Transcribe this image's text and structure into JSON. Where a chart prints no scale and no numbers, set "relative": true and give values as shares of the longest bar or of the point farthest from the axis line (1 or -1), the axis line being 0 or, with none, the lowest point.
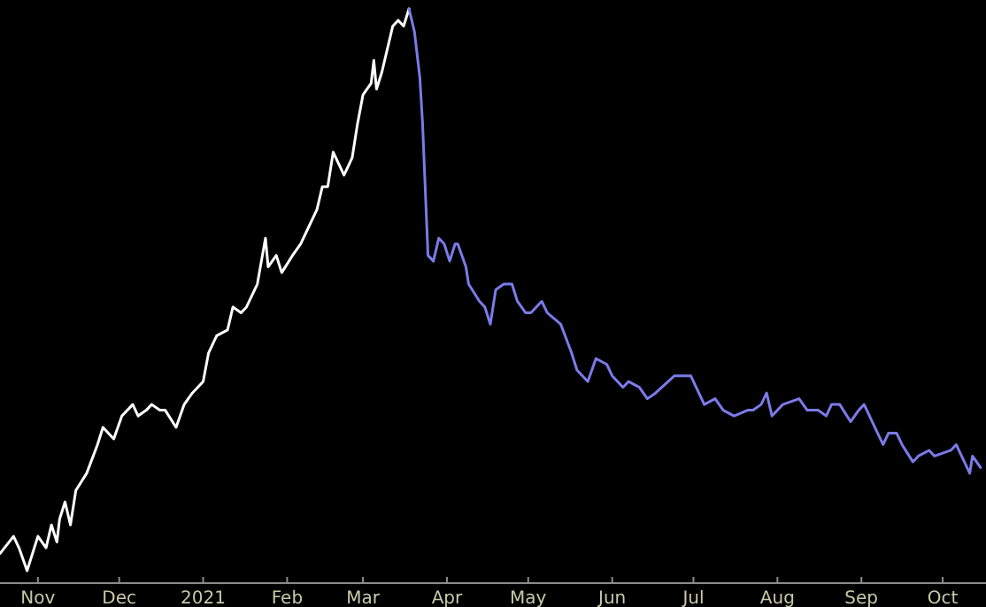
{
  "chart_data": {
    "type": "line",
    "relative": true,
    "marker": "none",
    "line_style": "solid",
    "xlim": [
      "2020-10-18",
      "2021-10-17"
    ],
    "xticks": [
      {
        "value": "2020-11-01",
        "label": "Nov"
      },
      {
        "value": "2020-12-01",
        "label": "Dec"
      },
      {
        "value": "2021-01-01",
        "label": "2021"
      },
      {
        "value": "2021-02-01",
        "label": "Feb"
      },
      {
        "value": "2021-03-01",
        "label": "Mar"
      },
      {
        "value": "2021-04-01",
        "label": "Apr"
      },
      {
        "value": "2021-05-01",
        "label": "May"
      },
      {
        "value": "2021-06-01",
        "label": "Jun"
      },
      {
        "value": "2021-07-01",
        "label": "Jul"
      },
      {
        "value": "2021-08-01",
        "label": "Aug"
      },
      {
        "value": "2021-09-01",
        "label": "Sep"
      },
      {
        "value": "2021-10-01",
        "label": "Oct"
      }
    ],
    "series": [
      {
        "color": "#ffffff",
        "x": [
          "2020-10-18",
          "2020-10-23",
          "2020-10-25",
          "2020-10-28",
          "2020-11-01",
          "2020-11-04",
          "2020-11-06",
          "2020-11-08",
          "2020-11-09",
          "2020-11-11",
          "2020-11-13",
          "2020-11-15",
          "2020-11-19",
          "2020-11-23",
          "2020-11-25",
          "2020-11-29",
          "2020-12-02",
          "2020-12-04",
          "2020-12-06",
          "2020-12-08",
          "2020-12-11",
          "2020-12-13",
          "2020-12-16",
          "2020-12-18",
          "2020-12-22",
          "2020-12-25",
          "2020-12-28",
          "2021-01-01",
          "2021-01-03",
          "2021-01-06",
          "2021-01-10",
          "2021-01-12",
          "2021-01-15",
          "2021-01-17",
          "2021-01-21",
          "2021-01-24",
          "2021-01-25",
          "2021-01-28",
          "2021-01-30",
          "2021-02-03",
          "2021-02-06",
          "2021-02-09",
          "2021-02-12",
          "2021-02-14",
          "2021-02-16",
          "2021-02-18",
          "2021-02-20",
          "2021-02-22",
          "2021-02-25",
          "2021-02-27",
          "2021-03-01",
          "2021-03-04",
          "2021-03-05",
          "2021-03-06",
          "2021-03-08",
          "2021-03-12",
          "2021-03-14",
          "2021-03-16",
          "2021-03-18"
        ],
        "values": [
          0.05,
          0.08,
          0.06,
          0.02,
          0.08,
          0.06,
          0.1,
          0.07,
          0.11,
          0.14,
          0.1,
          0.16,
          0.19,
          0.24,
          0.27,
          0.25,
          0.29,
          0.3,
          0.31,
          0.29,
          0.3,
          0.31,
          0.3,
          0.3,
          0.27,
          0.31,
          0.33,
          0.35,
          0.4,
          0.43,
          0.44,
          0.48,
          0.47,
          0.48,
          0.52,
          0.6,
          0.55,
          0.57,
          0.54,
          0.57,
          0.59,
          0.62,
          0.65,
          0.69,
          0.69,
          0.75,
          0.73,
          0.71,
          0.74,
          0.8,
          0.85,
          0.87,
          0.91,
          0.86,
          0.89,
          0.97,
          0.98,
          0.97,
          1
        ]
      },
      {
        "color": "#7b7bea",
        "x": [
          "2021-03-18",
          "2021-03-20",
          "2021-03-22",
          "2021-03-23",
          "2021-03-25",
          "2021-03-27",
          "2021-03-29",
          "2021-03-31",
          "2021-04-02",
          "2021-04-04",
          "2021-04-05",
          "2021-04-08",
          "2021-04-09",
          "2021-04-13",
          "2021-04-15",
          "2021-04-17",
          "2021-04-19",
          "2021-04-22",
          "2021-04-25",
          "2021-04-27",
          "2021-04-30",
          "2021-05-02",
          "2021-05-06",
          "2021-05-08",
          "2021-05-13",
          "2021-05-17",
          "2021-05-19",
          "2021-05-23",
          "2021-05-26",
          "2021-05-30",
          "2021-06-01",
          "2021-06-05",
          "2021-06-07",
          "2021-06-11",
          "2021-06-14",
          "2021-06-17",
          "2021-06-24",
          "2021-06-26",
          "2021-06-30",
          "2021-07-05",
          "2021-07-09",
          "2021-07-12",
          "2021-07-16",
          "2021-07-21",
          "2021-07-23",
          "2021-07-26",
          "2021-07-28",
          "2021-07-30",
          "2021-08-03",
          "2021-08-09",
          "2021-08-12",
          "2021-08-16",
          "2021-08-19",
          "2021-08-21",
          "2021-08-24",
          "2021-08-28",
          "2021-08-31",
          "2021-09-02",
          "2021-09-04",
          "2021-09-07",
          "2021-09-09",
          "2021-09-11",
          "2021-09-14",
          "2021-09-16",
          "2021-09-20",
          "2021-09-22",
          "2021-09-26",
          "2021-09-28",
          "2021-10-04",
          "2021-10-06",
          "2021-10-09",
          "2021-10-11",
          "2021-10-12",
          "2021-10-15"
        ],
        "values": [
          1,
          0.96,
          0.88,
          0.8,
          0.57,
          0.56,
          0.6,
          0.59,
          0.56,
          0.59,
          0.59,
          0.55,
          0.52,
          0.49,
          0.48,
          0.45,
          0.51,
          0.52,
          0.52,
          0.49,
          0.47,
          0.47,
          0.49,
          0.47,
          0.45,
          0.4,
          0.37,
          0.35,
          0.39,
          0.38,
          0.36,
          0.34,
          0.35,
          0.34,
          0.32,
          0.33,
          0.36,
          0.36,
          0.36,
          0.31,
          0.32,
          0.3,
          0.29,
          0.3,
          0.3,
          0.31,
          0.33,
          0.29,
          0.31,
          0.32,
          0.3,
          0.3,
          0.29,
          0.31,
          0.31,
          0.28,
          0.3,
          0.31,
          0.29,
          0.26,
          0.24,
          0.26,
          0.26,
          0.24,
          0.21,
          0.22,
          0.23,
          0.22,
          0.23,
          0.24,
          0.21,
          0.19,
          0.22,
          0.2
        ]
      }
    ]
  }
}
